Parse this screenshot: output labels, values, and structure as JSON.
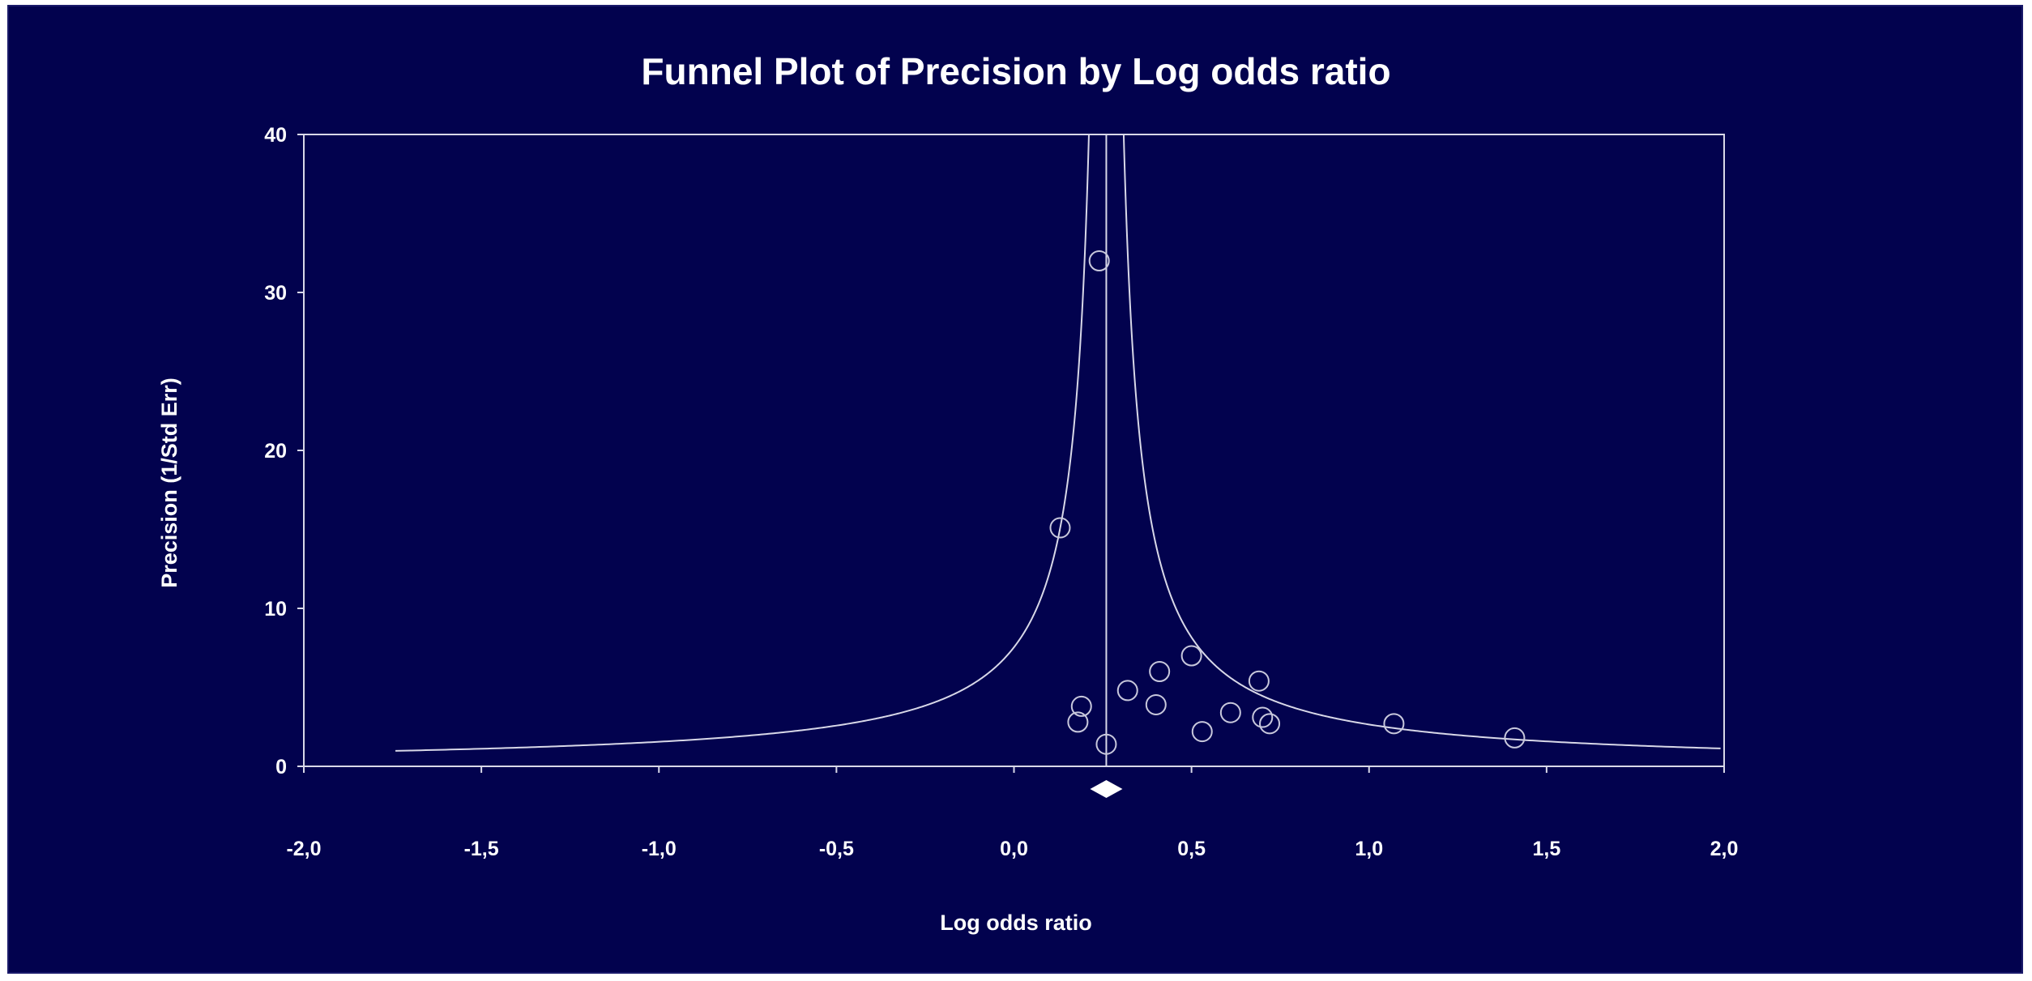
{
  "chart_data": {
    "type": "scatter",
    "title": "Funnel Plot of Precision by Log odds ratio",
    "xlabel": "Log odds ratio",
    "ylabel": "Precision (1/Std Err)",
    "xlim": [
      -2.0,
      2.0
    ],
    "ylim": [
      0,
      40
    ],
    "x_ticks": [
      -2.0,
      -1.5,
      -1.0,
      -0.5,
      0.0,
      0.5,
      1.0,
      1.5,
      2.0
    ],
    "x_tick_labels": [
      "-2,0",
      "-1,5",
      "-1,0",
      "-0,5",
      "0,0",
      "0,5",
      "1,0",
      "1,5",
      "2,0"
    ],
    "y_ticks": [
      0,
      10,
      20,
      30,
      40
    ],
    "y_tick_labels": [
      "0",
      "10",
      "20",
      "30",
      "40"
    ],
    "grid": false,
    "pooled_estimate": 0.26,
    "funnel_limit_multiplier": 1.96,
    "points": [
      {
        "x": 0.24,
        "y": 32.0
      },
      {
        "x": 0.13,
        "y": 15.1
      },
      {
        "x": 0.5,
        "y": 7.0
      },
      {
        "x": 0.41,
        "y": 6.0
      },
      {
        "x": 0.69,
        "y": 5.4
      },
      {
        "x": 0.32,
        "y": 4.8
      },
      {
        "x": 0.4,
        "y": 3.9
      },
      {
        "x": 0.19,
        "y": 3.8
      },
      {
        "x": 0.61,
        "y": 3.4
      },
      {
        "x": 0.7,
        "y": 3.1
      },
      {
        "x": 0.72,
        "y": 2.7
      },
      {
        "x": 1.07,
        "y": 2.7
      },
      {
        "x": 0.18,
        "y": 2.8
      },
      {
        "x": 0.53,
        "y": 2.2
      },
      {
        "x": 1.41,
        "y": 1.8
      },
      {
        "x": 0.26,
        "y": 1.4
      }
    ]
  },
  "colors": {
    "background": "#02024e",
    "foreground": "#ffffff",
    "marker_stroke": "#c8c8dc",
    "funnel_line": "#d8d8e8"
  }
}
